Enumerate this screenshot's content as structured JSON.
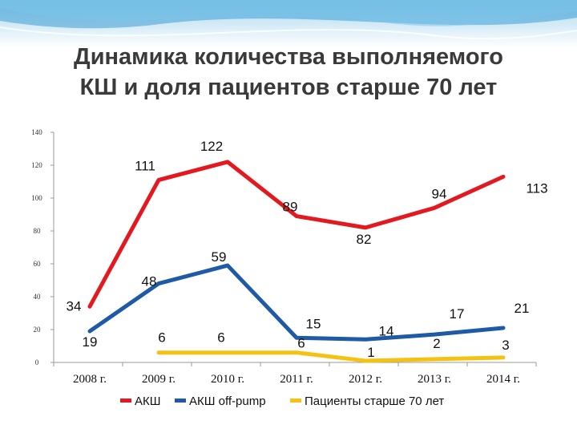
{
  "slide": {
    "title_line1": "Динамика количества выполняемого",
    "title_line2": "КШ и доля пациентов старше 70 лет"
  },
  "chart_data": {
    "type": "line",
    "categories": [
      "2008 г.",
      "2009 г.",
      "2010 г.",
      "2011 г.",
      "2012 г.",
      "2013 г.",
      "2014 г."
    ],
    "ylim": [
      0,
      140
    ],
    "yticks": [
      0,
      20,
      40,
      60,
      80,
      100,
      120,
      140
    ],
    "grid": false,
    "legend_position": "bottom",
    "series": [
      {
        "name": "АКШ",
        "color": "#e3191f",
        "values": [
          34,
          111,
          122,
          89,
          82,
          94,
          113
        ]
      },
      {
        "name": "АКШ off-pump",
        "color": "#1f5aa6",
        "values": [
          19,
          48,
          59,
          15,
          14,
          17,
          21
        ]
      },
      {
        "name": "Пациенты старше 70 лет",
        "color": "#f5c211",
        "values": [
          null,
          6,
          6,
          6,
          1,
          2,
          3
        ]
      }
    ]
  }
}
